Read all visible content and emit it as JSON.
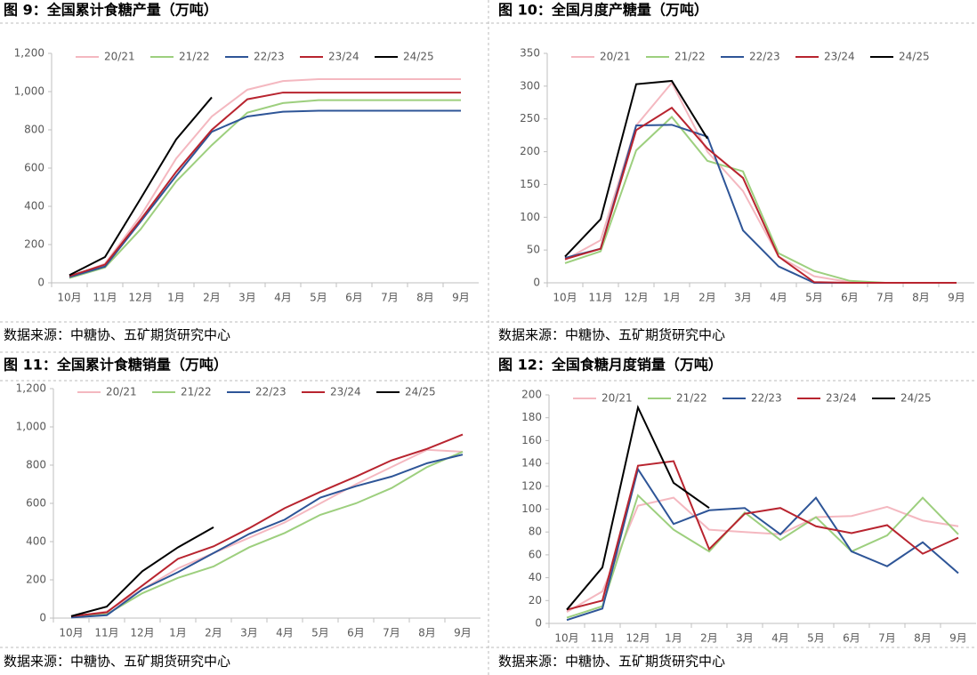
{
  "chart_data": [
    {
      "type": "line",
      "title": "图 9：全国累计食糖产量（万吨）",
      "source": "数据来源：中糖协、五矿期货研究中心",
      "categories": [
        "10月",
        "11月",
        "12月",
        "1月",
        "2月",
        "3月",
        "4月",
        "5月",
        "6月",
        "7月",
        "8月",
        "9月"
      ],
      "ylim": [
        0,
        1200
      ],
      "yticks": [
        0,
        200,
        400,
        600,
        800,
        {
          "value": 1000,
          "label": "1,000"
        },
        {
          "value": 1200,
          "label": "1,200"
        }
      ],
      "series": [
        {
          "name": "20/21",
          "color": "#f4b8c0",
          "values": [
            30,
            100,
            350,
            650,
            870,
            1010,
            1055,
            1065,
            1065,
            1065,
            1065,
            1065
          ]
        },
        {
          "name": "21/22",
          "color": "#9dcf7e",
          "values": [
            25,
            80,
            280,
            530,
            720,
            890,
            940,
            955,
            955,
            955,
            955,
            955
          ]
        },
        {
          "name": "22/23",
          "color": "#2e5597",
          "values": [
            30,
            85,
            320,
            560,
            790,
            870,
            895,
            900,
            900,
            900,
            900,
            900
          ]
        },
        {
          "name": "23/24",
          "color": "#b8242f",
          "values": [
            35,
            95,
            330,
            580,
            800,
            960,
            995,
            995,
            995,
            995,
            995,
            995
          ]
        },
        {
          "name": "24/25",
          "color": "#000000",
          "values": [
            40,
            135,
            440,
            750,
            970,
            null,
            null,
            null,
            null,
            null,
            null,
            null
          ]
        }
      ]
    },
    {
      "type": "line",
      "title": "图 10：全国月度产糖量（万吨）",
      "source": "数据来源：中糖协、五矿期货研究中心",
      "categories": [
        "10月",
        "11月",
        "12月",
        "1月",
        "2月",
        "3月",
        "4月",
        "5月",
        "6月",
        "7月",
        "8月",
        "9月"
      ],
      "ylim": [
        0,
        350
      ],
      "yticks": [
        0,
        50,
        100,
        150,
        200,
        250,
        300,
        350
      ],
      "series": [
        {
          "name": "20/21",
          "color": "#f4b8c0",
          "values": [
            35,
            65,
            240,
            305,
            200,
            140,
            40,
            10,
            1,
            0,
            0,
            0
          ]
        },
        {
          "name": "21/22",
          "color": "#9dcf7e",
          "values": [
            30,
            48,
            202,
            253,
            186,
            170,
            45,
            18,
            3,
            0,
            0,
            0
          ]
        },
        {
          "name": "22/23",
          "color": "#2e5597",
          "values": [
            38,
            52,
            240,
            241,
            223,
            80,
            25,
            0,
            0,
            0,
            0,
            0
          ]
        },
        {
          "name": "23/24",
          "color": "#b8242f",
          "values": [
            36,
            52,
            233,
            267,
            205,
            160,
            40,
            1,
            0,
            0,
            0,
            0
          ]
        },
        {
          "name": "24/25",
          "color": "#000000",
          "values": [
            40,
            97,
            303,
            308,
            220,
            null,
            null,
            null,
            null,
            null,
            null,
            null
          ]
        }
      ]
    },
    {
      "type": "line",
      "title": "图 11：全国累计食糖销量（万吨）",
      "source": "数据来源：中糖协、五矿期货研究中心",
      "categories": [
        "10月",
        "11月",
        "12月",
        "1月",
        "2月",
        "3月",
        "4月",
        "5月",
        "6月",
        "7月",
        "8月",
        "9月"
      ],
      "ylim": [
        0,
        1200
      ],
      "yticks": [
        0,
        200,
        400,
        600,
        800,
        {
          "value": 1000,
          "label": "1,000"
        },
        {
          "value": 1200,
          "label": "1,200"
        }
      ],
      "series": [
        {
          "name": "20/21",
          "color": "#f4b8c0",
          "values": [
            5,
            35,
            150,
            260,
            340,
            420,
            500,
            600,
            700,
            790,
            880,
            870
          ]
        },
        {
          "name": "21/22",
          "color": "#9dcf7e",
          "values": [
            5,
            20,
            130,
            210,
            270,
            370,
            445,
            540,
            600,
            680,
            790,
            870
          ]
        },
        {
          "name": "22/23",
          "color": "#2e5597",
          "values": [
            3,
            15,
            150,
            240,
            340,
            440,
            515,
            630,
            690,
            740,
            810,
            855
          ]
        },
        {
          "name": "23/24",
          "color": "#b8242f",
          "values": [
            10,
            30,
            170,
            310,
            375,
            470,
            575,
            660,
            740,
            825,
            885,
            960
          ]
        },
        {
          "name": "24/25",
          "color": "#000000",
          "values": [
            10,
            60,
            245,
            370,
            475,
            null,
            null,
            null,
            null,
            null,
            null,
            null
          ]
        }
      ]
    },
    {
      "type": "line",
      "title": "图 12：全国食糖月度销量（万吨）",
      "source": "数据来源：中糖协、五矿期货研究中心",
      "categories": [
        "10月",
        "11月",
        "12月",
        "1月",
        "2月",
        "3月",
        "4月",
        "5月",
        "6月",
        "7月",
        "8月",
        "9月"
      ],
      "ylim": [
        0,
        200
      ],
      "yticks": [
        0,
        20,
        40,
        60,
        80,
        100,
        120,
        140,
        160,
        180,
        200
      ],
      "series": [
        {
          "name": "20/21",
          "color": "#f4b8c0",
          "values": [
            10,
            28,
            103,
            110,
            82,
            80,
            78,
            93,
            94,
            102,
            90,
            85
          ]
        },
        {
          "name": "21/22",
          "color": "#9dcf7e",
          "values": [
            5,
            15,
            112,
            82,
            63,
            97,
            73,
            93,
            63,
            77,
            110,
            78
          ]
        },
        {
          "name": "22/23",
          "color": "#2e5597",
          "values": [
            3,
            13,
            135,
            87,
            99,
            101,
            78,
            110,
            63,
            50,
            71,
            44
          ]
        },
        {
          "name": "23/24",
          "color": "#b8242f",
          "values": [
            12,
            20,
            138,
            142,
            65,
            96,
            101,
            85,
            79,
            86,
            61,
            75
          ]
        },
        {
          "name": "24/25",
          "color": "#000000",
          "values": [
            12,
            49,
            189,
            123,
            101,
            null,
            null,
            null,
            null,
            null,
            null,
            null
          ]
        }
      ]
    }
  ]
}
